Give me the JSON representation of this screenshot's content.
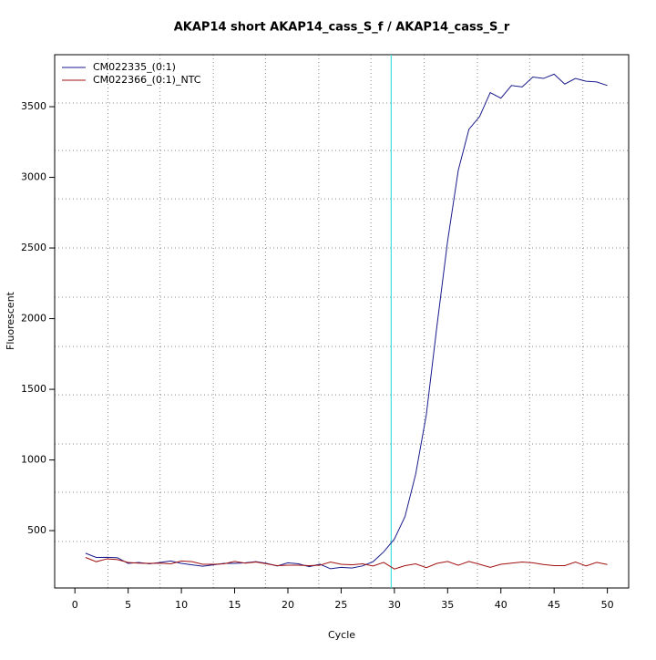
{
  "chart_data": {
    "type": "line",
    "title": "AKAP14 short AKAP14_cass_S_f / AKAP14_cass_S_r",
    "x_label": "Cycle",
    "y_label": "Fluorescent",
    "x": [
      1,
      2,
      3,
      4,
      5,
      6,
      7,
      8,
      9,
      10,
      11,
      12,
      13,
      14,
      15,
      16,
      17,
      18,
      19,
      20,
      21,
      22,
      23,
      24,
      25,
      26,
      27,
      28,
      29,
      30,
      31,
      32,
      33,
      34,
      35,
      36,
      37,
      38,
      39,
      40,
      41,
      42,
      43,
      44,
      45,
      46,
      47,
      48,
      49,
      50
    ],
    "series": [
      {
        "name": "CM022335_(0:1)",
        "color": "#1a1a8c",
        "values": [
          340,
          310,
          311,
          308,
          268,
          275,
          265,
          275,
          285,
          268,
          258,
          248,
          258,
          268,
          268,
          272,
          280,
          268,
          250,
          272,
          265,
          245,
          262,
          230,
          240,
          235,
          250,
          280,
          350,
          440,
          600,
          900,
          1320,
          1950,
          2550,
          3050,
          3340,
          3430,
          3600,
          3560,
          3650,
          3640,
          3710,
          3700,
          3730,
          3660,
          3700,
          3680,
          3675,
          3650
        ]
      },
      {
        "name": "CM022366_(0:1)_NTC",
        "color": "#a01010",
        "values": [
          310,
          280,
          300,
          295,
          275,
          270,
          268,
          270,
          265,
          285,
          280,
          262,
          262,
          265,
          282,
          270,
          278,
          265,
          252,
          255,
          255,
          252,
          255,
          278,
          262,
          258,
          265,
          250,
          275,
          228,
          252,
          265,
          238,
          268,
          282,
          255,
          282,
          262,
          240,
          262,
          270,
          278,
          272,
          260,
          252,
          252,
          278,
          250,
          275,
          260
        ]
      }
    ],
    "xlim": [
      -1.9,
      52
    ],
    "ylim": [
      94,
      3868
    ],
    "xticks": [
      0,
      5,
      10,
      15,
      20,
      25,
      30,
      35,
      40,
      45,
      50
    ],
    "yticks": [
      500,
      1000,
      1500,
      2000,
      2500,
      3000,
      3500
    ],
    "grid": true,
    "grid_x": [
      3.1,
      8,
      13,
      17.9,
      22.9,
      27.8,
      32.8,
      37.8,
      42.7,
      47.7
    ],
    "grid_y": [
      423,
      771,
      1113,
      1461,
      1803,
      2152,
      2500,
      2848,
      3190,
      3526
    ],
    "vline": {
      "x": 29.7,
      "color": "#40e0e0"
    },
    "legend": "top-left"
  }
}
